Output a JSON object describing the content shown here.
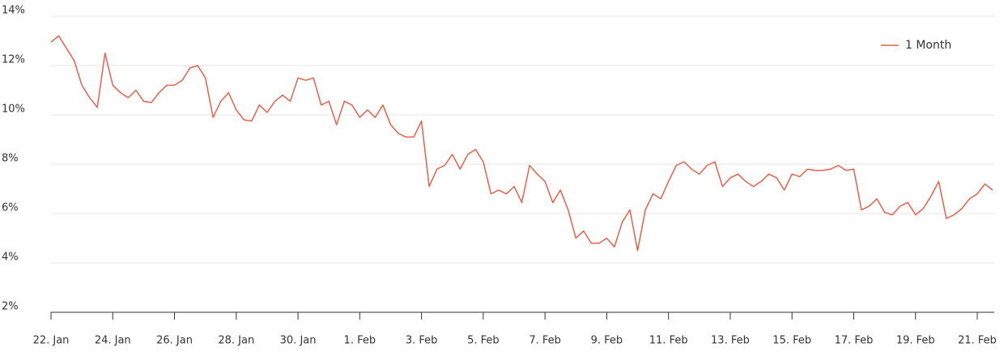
{
  "chart_data": {
    "type": "line",
    "x": [
      0,
      0.25,
      0.5,
      0.75,
      1,
      1.25,
      1.5,
      1.75,
      2,
      2.25,
      2.5,
      2.75,
      3,
      3.25,
      3.5,
      3.75,
      4,
      4.25,
      4.5,
      4.75,
      5,
      5.25,
      5.5,
      5.75,
      6,
      6.25,
      6.5,
      6.75,
      7,
      7.25,
      7.5,
      7.75,
      8,
      8.25,
      8.5,
      8.75,
      9,
      9.25,
      9.5,
      9.75,
      10,
      10.25,
      10.5,
      10.75,
      11,
      11.25,
      11.5,
      11.75,
      12,
      12.25,
      12.5,
      12.75,
      13,
      13.25,
      13.5,
      13.75,
      14,
      14.25,
      14.5,
      14.75,
      15,
      15.25,
      15.5,
      15.75,
      16,
      16.25,
      16.5,
      16.75,
      17,
      17.25,
      17.5,
      17.75,
      18,
      18.25,
      18.5,
      18.75,
      19,
      19.25,
      19.5,
      19.75,
      20,
      20.25,
      20.5,
      20.75,
      21,
      21.25,
      21.5,
      21.75,
      22,
      22.25,
      22.5,
      22.75,
      23,
      23.25,
      23.5,
      23.75,
      24,
      24.25,
      24.5,
      24.75,
      25,
      25.25,
      25.5,
      25.75,
      26,
      26.25,
      26.5,
      26.75,
      27,
      27.25,
      27.5,
      27.75,
      28,
      28.25,
      28.5,
      28.75,
      29,
      29.25,
      29.5,
      29.75,
      30,
      30.25,
      30.5
    ],
    "series": [
      {
        "name": "1 Month",
        "color": "#e8604c",
        "values": [
          12.95,
          13.2,
          12.7,
          12.2,
          11.2,
          10.7,
          10.3,
          12.5,
          11.2,
          10.9,
          10.7,
          11.0,
          10.55,
          10.5,
          10.9,
          11.2,
          11.2,
          11.4,
          11.9,
          12.0,
          11.5,
          9.9,
          10.55,
          10.9,
          10.2,
          9.8,
          9.75,
          10.4,
          10.1,
          10.55,
          10.8,
          10.55,
          11.5,
          11.4,
          11.5,
          10.4,
          10.55,
          9.6,
          10.55,
          10.4,
          9.9,
          10.2,
          9.9,
          10.4,
          9.6,
          9.25,
          9.1,
          9.1,
          9.75,
          7.1,
          7.8,
          7.95,
          8.4,
          7.8,
          8.4,
          8.6,
          8.1,
          6.8,
          6.95,
          6.8,
          7.1,
          6.45,
          7.95,
          7.6,
          7.3,
          6.45,
          6.95,
          6.15,
          5.0,
          5.3,
          4.8,
          4.8,
          5.0,
          4.65,
          5.65,
          6.15,
          4.5,
          6.15,
          6.8,
          6.6,
          7.3,
          7.95,
          8.1,
          7.8,
          7.6,
          7.95,
          8.1,
          7.1,
          7.45,
          7.6,
          7.3,
          7.1,
          7.3,
          7.6,
          7.45,
          6.95,
          7.6,
          7.5,
          7.8,
          7.75,
          7.75,
          7.8,
          7.95,
          7.75,
          7.8,
          6.15,
          6.3,
          6.6,
          6.05,
          5.95,
          6.3,
          6.45,
          5.95,
          6.2,
          6.7,
          7.3,
          5.8,
          5.95,
          6.2,
          6.6,
          6.8,
          7.2,
          6.95
        ]
      }
    ],
    "xlim": [
      0,
      30.55
    ],
    "xticks": [
      {
        "value": 0,
        "label": "22. Jan"
      },
      {
        "value": 2,
        "label": "24. Jan"
      },
      {
        "value": 4,
        "label": "26. Jan"
      },
      {
        "value": 6,
        "label": "28. Jan"
      },
      {
        "value": 8,
        "label": "30. Jan"
      },
      {
        "value": 10,
        "label": "1. Feb"
      },
      {
        "value": 12,
        "label": "3. Feb"
      },
      {
        "value": 14,
        "label": "5. Feb"
      },
      {
        "value": 16,
        "label": "7. Feb"
      },
      {
        "value": 18,
        "label": "9. Feb"
      },
      {
        "value": 20,
        "label": "11. Feb"
      },
      {
        "value": 22,
        "label": "13. Feb"
      },
      {
        "value": 24,
        "label": "15. Feb"
      },
      {
        "value": 26,
        "label": "17. Feb"
      },
      {
        "value": 28,
        "label": "19. Feb"
      },
      {
        "value": 30,
        "label": "21. Feb"
      }
    ],
    "ylim": [
      2,
      14
    ],
    "yticks": [
      {
        "value": 2,
        "label": "2%"
      },
      {
        "value": 4,
        "label": "4%"
      },
      {
        "value": 6,
        "label": "6%"
      },
      {
        "value": 8,
        "label": "8%"
      },
      {
        "value": 10,
        "label": "10%"
      },
      {
        "value": 12,
        "label": "12%"
      },
      {
        "value": 14,
        "label": "14%"
      }
    ],
    "grid": true,
    "legend": "top-right"
  }
}
